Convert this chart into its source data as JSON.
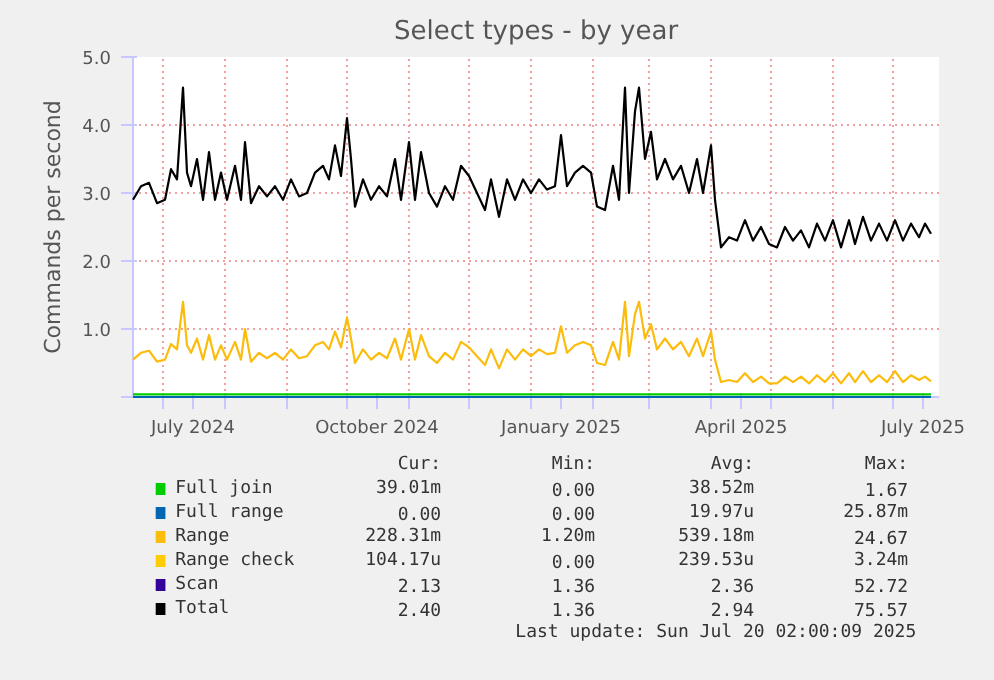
{
  "chart_data": {
    "type": "line",
    "title": "Select types - by year",
    "ylabel": "Commands per second",
    "x": [
      "2024-06-16",
      "2024-06-20",
      "2024-06-24",
      "2024-06-28",
      "2024-07-02",
      "2024-07-05",
      "2024-07-08",
      "2024-07-11",
      "2024-07-13",
      "2024-07-15",
      "2024-07-18",
      "2024-07-21",
      "2024-07-24",
      "2024-07-27",
      "2024-07-30",
      "2024-08-02",
      "2024-08-06",
      "2024-08-09",
      "2024-08-11",
      "2024-08-14",
      "2024-08-18",
      "2024-08-22",
      "2024-08-26",
      "2024-08-30",
      "2024-09-03",
      "2024-09-07",
      "2024-09-11",
      "2024-09-15",
      "2024-09-19",
      "2024-09-22",
      "2024-09-25",
      "2024-09-28",
      "2024-10-01",
      "2024-10-03",
      "2024-10-05",
      "2024-10-09",
      "2024-10-13",
      "2024-10-17",
      "2024-10-21",
      "2024-10-25",
      "2024-10-28",
      "2024-11-01",
      "2024-11-04",
      "2024-11-07",
      "2024-11-11",
      "2024-11-15",
      "2024-11-19",
      "2024-11-23",
      "2024-11-27",
      "2024-12-01",
      "2024-12-05",
      "2024-12-09",
      "2024-12-12",
      "2024-12-16",
      "2024-12-20",
      "2024-12-24",
      "2024-12-28",
      "2025-01-01",
      "2025-01-05",
      "2025-01-09",
      "2025-01-13",
      "2025-01-16",
      "2025-01-19",
      "2025-01-23",
      "2025-01-27",
      "2025-01-31",
      "2025-02-03",
      "2025-02-07",
      "2025-02-11",
      "2025-02-14",
      "2025-02-17",
      "2025-02-19",
      "2025-02-22",
      "2025-02-24",
      "2025-02-27",
      "2025-03-02",
      "2025-03-05",
      "2025-03-09",
      "2025-03-13",
      "2025-03-17",
      "2025-03-21",
      "2025-03-25",
      "2025-03-28",
      "2025-04-01",
      "2025-04-03",
      "2025-04-06",
      "2025-04-10",
      "2025-04-14",
      "2025-04-18",
      "2025-04-22",
      "2025-04-26",
      "2025-04-30",
      "2025-05-04",
      "2025-05-08",
      "2025-05-12",
      "2025-05-16",
      "2025-05-20",
      "2025-05-24",
      "2025-05-28",
      "2025-06-01",
      "2025-06-05",
      "2025-06-09",
      "2025-06-12",
      "2025-06-16",
      "2025-06-20",
      "2025-06-24",
      "2025-06-28",
      "2025-07-02",
      "2025-07-06",
      "2025-07-10",
      "2025-07-14",
      "2025-07-17",
      "2025-07-20"
    ],
    "series": [
      {
        "name": "Full join",
        "color": "#00cc00",
        "x": [
          "2024-06-16",
          "2025-07-20"
        ],
        "values": [
          0.04,
          0.04
        ]
      },
      {
        "name": "Full range",
        "color": "#0066b3",
        "x": [
          "2024-06-16",
          "2025-07-20"
        ],
        "values": [
          0,
          0
        ]
      },
      {
        "name": "Range",
        "color": "#fcbc0c",
        "values": [
          0.55,
          0.65,
          0.68,
          0.52,
          0.55,
          0.78,
          0.7,
          1.4,
          0.76,
          0.65,
          0.86,
          0.55,
          0.91,
          0.55,
          0.76,
          0.55,
          0.81,
          0.55,
          1.0,
          0.52,
          0.65,
          0.57,
          0.65,
          0.55,
          0.7,
          0.57,
          0.6,
          0.76,
          0.81,
          0.7,
          0.96,
          0.73,
          1.17,
          0.86,
          0.5,
          0.7,
          0.55,
          0.65,
          0.57,
          0.86,
          0.55,
          1.0,
          0.55,
          0.91,
          0.6,
          0.5,
          0.65,
          0.55,
          0.81,
          0.73,
          0.6,
          0.47,
          0.7,
          0.42,
          0.7,
          0.55,
          0.7,
          0.6,
          0.7,
          0.63,
          0.65,
          1.04,
          0.65,
          0.76,
          0.81,
          0.76,
          0.5,
          0.47,
          0.81,
          0.55,
          1.4,
          0.6,
          1.22,
          1.4,
          0.86,
          1.07,
          0.7,
          0.86,
          0.7,
          0.81,
          0.6,
          0.86,
          0.6,
          0.96,
          0.55,
          0.22,
          0.25,
          0.22,
          0.35,
          0.22,
          0.3,
          0.2,
          0.2,
          0.3,
          0.22,
          0.3,
          0.2,
          0.32,
          0.22,
          0.35,
          0.2,
          0.35,
          0.22,
          0.38,
          0.22,
          0.32,
          0.22,
          0.38,
          0.22,
          0.32,
          0.25,
          0.3,
          0.23
        ]
      },
      {
        "name": "Range check",
        "color": "#ffcc00",
        "values": [
          null,
          null,
          null,
          null,
          null,
          null,
          null,
          null,
          null,
          null,
          null,
          null,
          null,
          null,
          null,
          null,
          null,
          null,
          null,
          null,
          null,
          null,
          null,
          null,
          null,
          null,
          null,
          null,
          null,
          null,
          null,
          null,
          null,
          null,
          null,
          null,
          null,
          null,
          null,
          null,
          null,
          null,
          null,
          null,
          null,
          null,
          null,
          null,
          null,
          null,
          null,
          null,
          null,
          null,
          null,
          null,
          null,
          null,
          null,
          null,
          null,
          null,
          null,
          null,
          null,
          null,
          null,
          null,
          null,
          null,
          null,
          null,
          null,
          null,
          null,
          null,
          null,
          null,
          null,
          null,
          null,
          null,
          null,
          null,
          null,
          null,
          null,
          null,
          null,
          null,
          null,
          null,
          null,
          null,
          null,
          null,
          null,
          null,
          null,
          null,
          null,
          null,
          null,
          null,
          null,
          null,
          null,
          null,
          null,
          null,
          null,
          null,
          null
        ]
      },
      {
        "name": "Scan",
        "color": "#330099",
        "values": [
          null,
          null,
          null,
          null,
          null,
          null,
          null,
          null,
          null,
          null,
          null,
          null,
          null,
          null,
          null,
          null,
          null,
          null,
          null,
          null,
          null,
          null,
          null,
          null,
          null,
          null,
          null,
          null,
          null,
          null,
          null,
          null,
          null,
          null,
          null,
          null,
          null,
          null,
          null,
          null,
          null,
          null,
          null,
          null,
          null,
          null,
          null,
          null,
          null,
          null,
          null,
          null,
          null,
          null,
          null,
          null,
          null,
          null,
          null,
          null,
          null,
          null,
          null,
          null,
          null,
          null,
          null,
          null,
          null,
          null,
          null,
          null,
          null,
          null,
          null,
          null,
          null,
          null,
          null,
          null,
          null,
          null,
          null,
          null,
          null,
          null,
          null,
          null,
          null,
          null,
          null,
          null,
          null,
          null,
          null,
          null,
          null,
          null,
          null,
          null,
          null,
          null,
          null,
          null,
          null,
          null,
          null,
          null,
          null,
          null,
          null,
          null,
          null
        ]
      },
      {
        "name": "Total",
        "color": "#000000",
        "values": [
          2.9,
          3.1,
          3.15,
          2.85,
          2.9,
          3.35,
          3.2,
          4.55,
          3.3,
          3.1,
          3.5,
          2.9,
          3.6,
          2.9,
          3.3,
          2.9,
          3.4,
          2.9,
          3.75,
          2.85,
          3.1,
          2.95,
          3.1,
          2.9,
          3.2,
          2.95,
          3.0,
          3.3,
          3.4,
          3.2,
          3.7,
          3.25,
          4.1,
          3.5,
          2.8,
          3.2,
          2.9,
          3.1,
          2.95,
          3.5,
          2.9,
          3.75,
          2.9,
          3.6,
          3.0,
          2.8,
          3.1,
          2.9,
          3.4,
          3.25,
          3.0,
          2.75,
          3.2,
          2.65,
          3.2,
          2.9,
          3.2,
          3.0,
          3.2,
          3.05,
          3.1,
          3.85,
          3.1,
          3.3,
          3.4,
          3.3,
          2.8,
          2.75,
          3.4,
          2.9,
          4.55,
          3.0,
          4.2,
          4.55,
          3.5,
          3.9,
          3.2,
          3.5,
          3.2,
          3.4,
          3.0,
          3.5,
          3.0,
          3.7,
          2.9,
          2.2,
          2.35,
          2.3,
          2.6,
          2.3,
          2.5,
          2.25,
          2.2,
          2.5,
          2.3,
          2.45,
          2.2,
          2.55,
          2.3,
          2.6,
          2.2,
          2.6,
          2.25,
          2.65,
          2.3,
          2.55,
          2.3,
          2.6,
          2.3,
          2.55,
          2.35,
          2.55,
          2.4
        ]
      }
    ],
    "xlim": [
      "2024-06-16",
      "2025-07-24"
    ],
    "xticks": [
      {
        "value": "2024-07-01",
        "label": null
      },
      {
        "value": "2024-07-16",
        "label": "July 2024"
      },
      {
        "value": "2024-08-01",
        "label": null
      },
      {
        "value": "2024-09-01",
        "label": null
      },
      {
        "value": "2024-10-01",
        "label": null
      },
      {
        "value": "2024-10-16",
        "label": "October 2024"
      },
      {
        "value": "2024-11-01",
        "label": null
      },
      {
        "value": "2024-12-01",
        "label": null
      },
      {
        "value": "2025-01-01",
        "label": null
      },
      {
        "value": "2025-01-16",
        "label": "January 2025"
      },
      {
        "value": "2025-02-01",
        "label": null
      },
      {
        "value": "2025-03-01",
        "label": null
      },
      {
        "value": "2025-04-01",
        "label": null
      },
      {
        "value": "2025-04-16",
        "label": "April 2025"
      },
      {
        "value": "2025-05-01",
        "label": null
      },
      {
        "value": "2025-06-01",
        "label": null
      },
      {
        "value": "2025-07-01",
        "label": null
      },
      {
        "value": "2025-07-16",
        "label": "July 2025"
      }
    ],
    "ylim": [
      0,
      5
    ],
    "yticks": [
      {
        "value": 0,
        "label": null
      },
      {
        "value": 1,
        "label": "1.0"
      },
      {
        "value": 2,
        "label": "2.0"
      },
      {
        "value": 3,
        "label": "3.0"
      },
      {
        "value": 4,
        "label": "4.0"
      },
      {
        "value": 5,
        "label": "5.0"
      }
    ],
    "grid": true,
    "legend": "bottom",
    "line_style": "solid",
    "annotations": [
      "Cur:",
      "Min:",
      "Avg:",
      "Max:",
      "39.01m",
      "0.00",
      "38.52m",
      "1.67",
      "0.00",
      "0.00",
      "19.97u",
      "25.87m",
      "228.31m",
      "1.20m",
      "539.18m",
      "24.67",
      "104.17u",
      "0.00",
      "239.53u",
      "3.24m",
      "2.13",
      "1.36",
      "2.36",
      "52.72",
      "2.40",
      "1.36",
      "2.94",
      "75.57",
      "Last update: Sun Jul 20 02:00:09 2025"
    ]
  }
}
